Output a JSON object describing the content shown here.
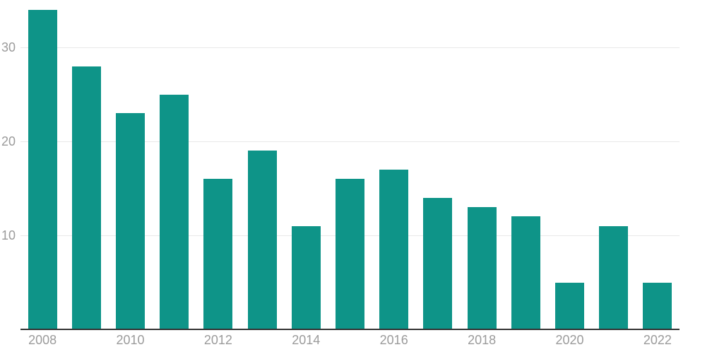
{
  "chart_data": {
    "type": "bar",
    "title": "",
    "xlabel": "",
    "ylabel": "",
    "categories": [
      "2008",
      "2009",
      "2010",
      "2011",
      "2012",
      "2013",
      "2014",
      "2015",
      "2016",
      "2017",
      "2018",
      "2019",
      "2020",
      "2021",
      "2022"
    ],
    "values": [
      34,
      28,
      23,
      25,
      16,
      19,
      11,
      16,
      17,
      14,
      13,
      12,
      5,
      11,
      5
    ],
    "yticks": [
      10,
      20,
      30
    ],
    "xtick_labels": [
      "2008",
      "2010",
      "2012",
      "2014",
      "2016",
      "2018",
      "2020",
      "2022"
    ],
    "ylim": [
      0,
      35
    ],
    "grid": "horizontal-only",
    "legend": "none",
    "colors": {
      "bar": "#0e9488",
      "gridline": "#e9e9e9",
      "axis_line": "#333333",
      "tick_label": "#9b9b9b",
      "background": "#ffffff"
    }
  }
}
